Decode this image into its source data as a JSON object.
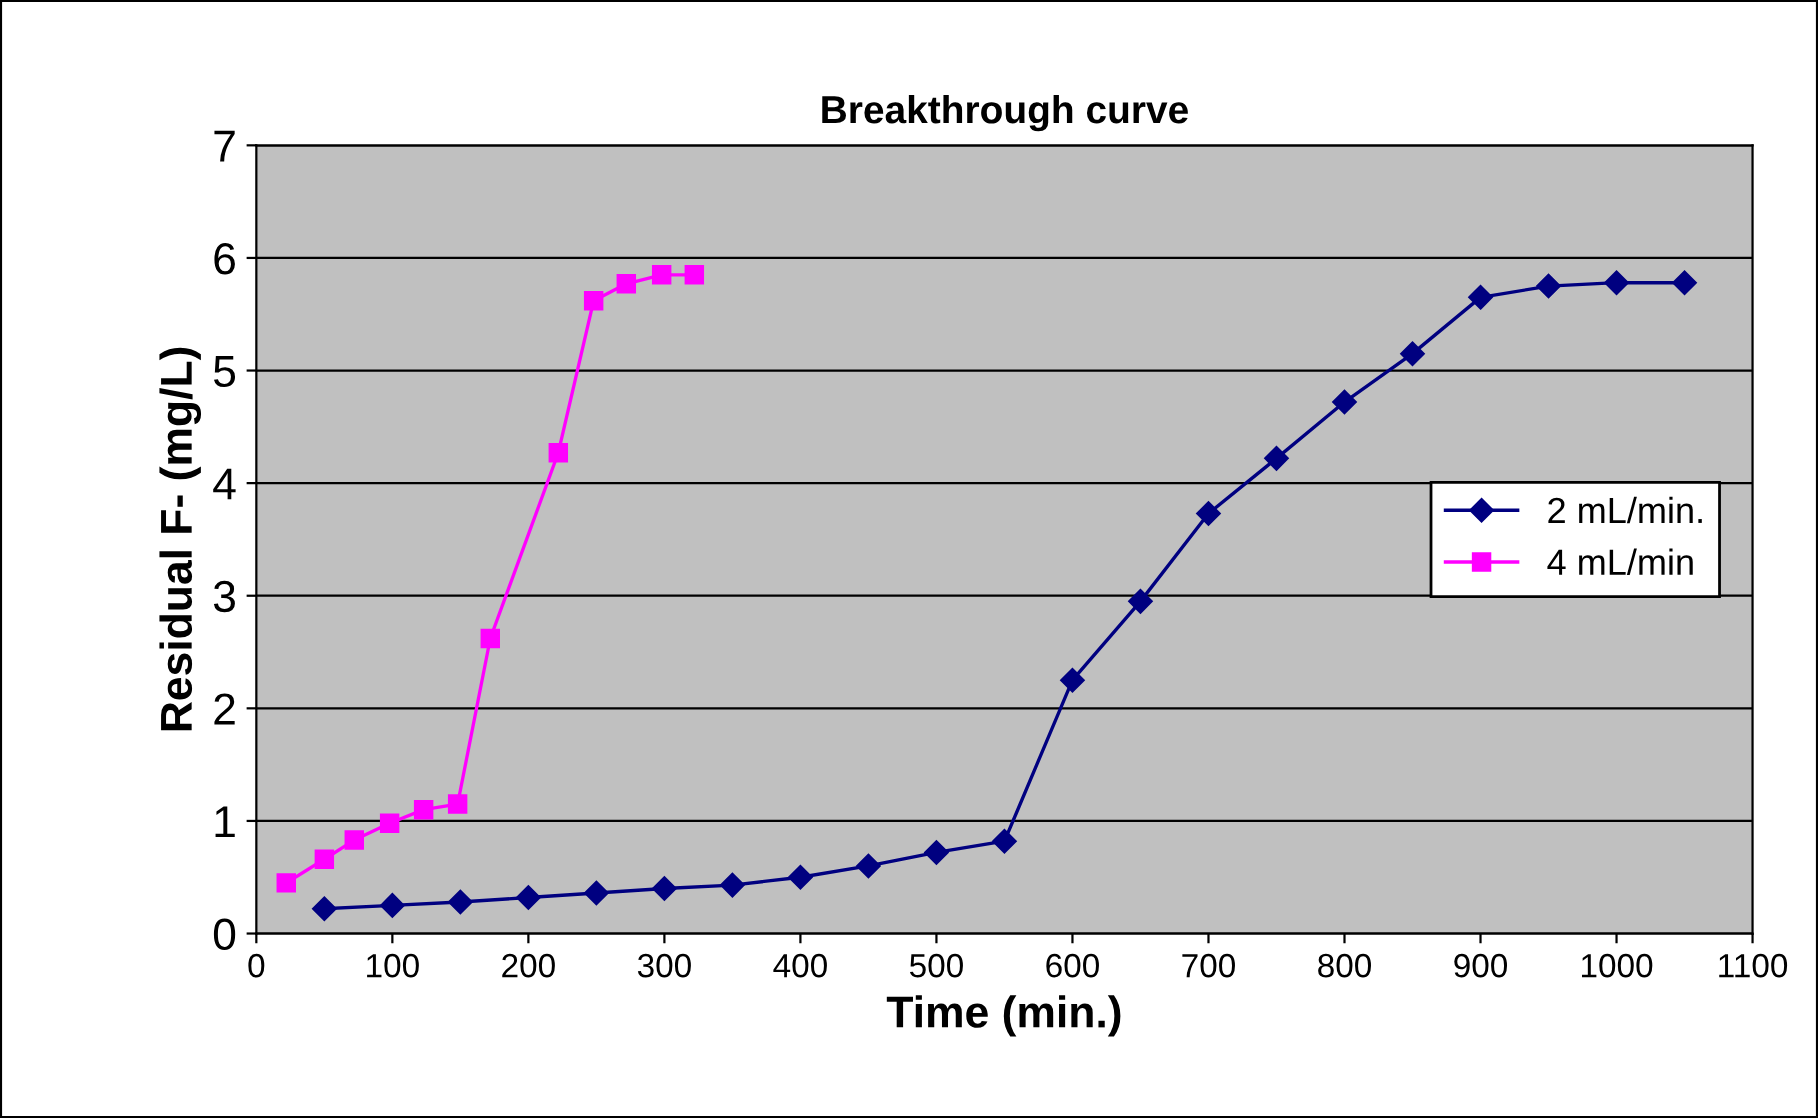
{
  "chart_data": {
    "type": "line",
    "title": "Breakthrough curve",
    "xlabel": "Time (min.)",
    "ylabel": "Residual F- (mg/L)",
    "xlim": [
      0,
      1100
    ],
    "xticks": [
      0,
      100,
      200,
      300,
      400,
      500,
      600,
      700,
      800,
      900,
      1000,
      1100
    ],
    "ylim": [
      0,
      7
    ],
    "yticks": [
      0,
      1,
      2,
      3,
      4,
      5,
      6,
      7
    ],
    "grid": "y",
    "legend": "center right",
    "line_style": "solid",
    "series": [
      {
        "name": "2 mL/min.",
        "color": "#000080",
        "marker": "diamond",
        "x": [
          50,
          100,
          150,
          200,
          250,
          300,
          350,
          400,
          450,
          500,
          550,
          600,
          650,
          700,
          750,
          800,
          850,
          900,
          950,
          1000,
          1050
        ],
        "values": [
          0.22,
          0.25,
          0.28,
          0.32,
          0.36,
          0.4,
          0.43,
          0.5,
          0.6,
          0.72,
          0.82,
          2.25,
          2.95,
          3.73,
          4.22,
          4.72,
          5.15,
          5.65,
          5.75,
          5.78,
          5.78
        ]
      },
      {
        "name": "4 mL/min",
        "color": "#ff00ff",
        "marker": "square",
        "x": [
          22,
          50,
          72,
          98,
          123,
          148,
          172,
          222,
          248,
          272,
          298,
          322
        ],
        "values": [
          0.45,
          0.66,
          0.83,
          0.98,
          1.1,
          1.15,
          2.62,
          4.27,
          5.62,
          5.77,
          5.85,
          5.85
        ]
      }
    ]
  }
}
